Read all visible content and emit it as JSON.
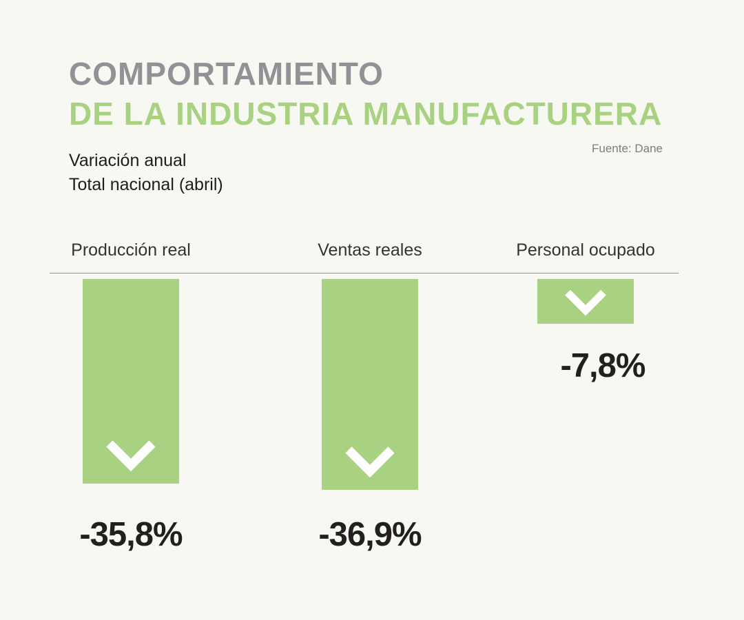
{
  "header": {
    "title_line1": "COMPORTAMIENTO",
    "title_line2": "DE LA INDUSTRIA MANUFACTURERA",
    "source": "Fuente: Dane",
    "subtitle_line1": "Variación anual",
    "subtitle_line2": "Total nacional (abril)"
  },
  "colors": {
    "bar_green": "#a8d182",
    "title_gray": "#909295",
    "title_green": "#a8d182",
    "background": "#f7f8f2",
    "value_text": "#231f20"
  },
  "chart_data": {
    "type": "bar",
    "direction": "down",
    "categories": [
      "Producción real",
      "Ventas reales",
      "Personal ocupado"
    ],
    "values": [
      -35.8,
      -36.9,
      -7.8
    ],
    "value_labels": [
      "-35,8%",
      "-36,9%",
      "-7,8%"
    ],
    "unit": "%",
    "title": "Comportamiento de la industria manufacturera",
    "subtitle": "Variación anual — Total nacional (abril)",
    "source": "Fuente: Dane",
    "ylim": [
      -40,
      0
    ],
    "grid": false,
    "legend": false
  }
}
